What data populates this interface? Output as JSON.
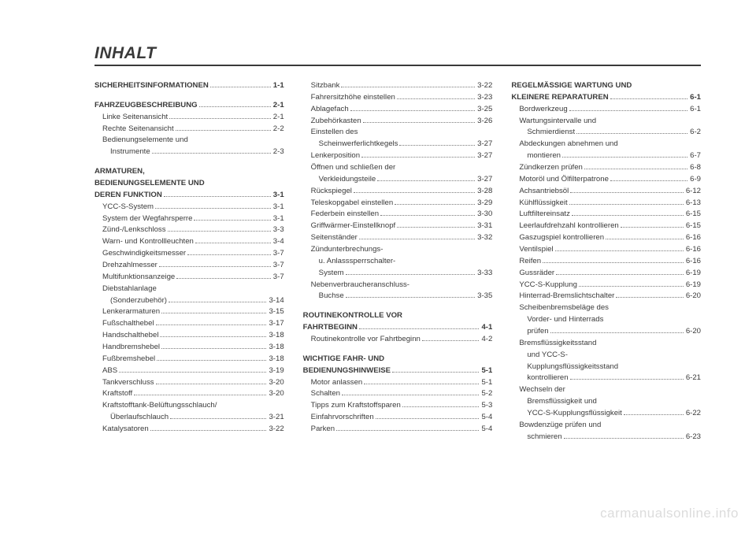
{
  "title": "INHALT",
  "watermark": "carmanualsonline.info",
  "col1": {
    "s1": {
      "head": "SICHERHEITSINFORMATIONEN",
      "pg": "1-1"
    },
    "s2": {
      "head": "FAHRZEUGBESCHREIBUNG",
      "pg": "2-1",
      "e1": {
        "t": "Linke Seitenansicht",
        "pg": "2-1"
      },
      "e2": {
        "t": "Rechte Seitenansicht",
        "pg": "2-2"
      },
      "e3": {
        "t": "Bedienungselemente und"
      },
      "e4": {
        "t": "Instrumente",
        "pg": "2-3"
      }
    },
    "s3": {
      "l1": "ARMATUREN,",
      "l2": "BEDIENUNGSELEMENTE UND",
      "l3": "DEREN FUNKTION",
      "pg": "3-1",
      "e1": {
        "t": "YCC-S-System",
        "pg": "3-1"
      },
      "e2": {
        "t": "System der Wegfahrsperre",
        "pg": "3-1"
      },
      "e3": {
        "t": "Zünd-/Lenkschloss",
        "pg": "3-3"
      },
      "e4": {
        "t": "Warn- und Kontrollleuchten",
        "pg": "3-4"
      },
      "e5": {
        "t": "Geschwindigkeitsmesser",
        "pg": "3-7"
      },
      "e6": {
        "t": "Drehzahlmesser",
        "pg": "3-7"
      },
      "e7": {
        "t": "Multifunktionsanzeige",
        "pg": "3-7"
      },
      "e8": {
        "t": "Diebstahlanlage"
      },
      "e9": {
        "t": "(Sonderzubehör)",
        "pg": "3-14"
      },
      "e10": {
        "t": "Lenkerarmaturen",
        "pg": "3-15"
      },
      "e11": {
        "t": "Fußschalthebel",
        "pg": "3-17"
      },
      "e12": {
        "t": "Handschalthebel",
        "pg": "3-18"
      },
      "e13": {
        "t": "Handbremshebel",
        "pg": "3-18"
      },
      "e14": {
        "t": "Fußbremshebel",
        "pg": "3-18"
      },
      "e15": {
        "t": "ABS",
        "pg": "3-19"
      },
      "e16": {
        "t": "Tankverschluss",
        "pg": "3-20"
      },
      "e17": {
        "t": "Kraftstoff",
        "pg": "3-20"
      },
      "e18": {
        "t": "Kraftstofftank-Belüftungsschlauch/"
      },
      "e19": {
        "t": "Überlaufschlauch",
        "pg": "3-21"
      },
      "e20": {
        "t": "Katalysatoren",
        "pg": "3-22"
      }
    }
  },
  "col2": {
    "top": {
      "e1": {
        "t": "Sitzbank",
        "pg": "3-22"
      },
      "e2": {
        "t": "Fahrersitzhöhe einstellen",
        "pg": "3-23"
      },
      "e3": {
        "t": "Ablagefach",
        "pg": "3-25"
      },
      "e4": {
        "t": "Zubehörkasten",
        "pg": "3-26"
      },
      "e5": {
        "t": "Einstellen des"
      },
      "e6": {
        "t": "Scheinwerferlichtkegels",
        "pg": "3-27"
      },
      "e7": {
        "t": "Lenkerposition",
        "pg": "3-27"
      },
      "e8": {
        "t": "Öffnen und schließen der"
      },
      "e9": {
        "t": "Verkleidungsteile",
        "pg": "3-27"
      },
      "e10": {
        "t": "Rückspiegel",
        "pg": "3-28"
      },
      "e11": {
        "t": "Teleskopgabel einstellen",
        "pg": "3-29"
      },
      "e12": {
        "t": "Federbein einstellen",
        "pg": "3-30"
      },
      "e13": {
        "t": "Griffwärmer-Einstellknopf",
        "pg": "3-31"
      },
      "e14": {
        "t": "Seitenständer",
        "pg": "3-32"
      },
      "e15": {
        "t": "Zündunterbrechungs-"
      },
      "e16": {
        "t": "u. Anlasssperrschalter-"
      },
      "e17": {
        "t": "System",
        "pg": "3-33"
      },
      "e18": {
        "t": "Nebenverbraucheranschluss-"
      },
      "e19": {
        "t": "Buchse",
        "pg": "3-35"
      }
    },
    "s4": {
      "l1": "ROUTINEKONTROLLE VOR",
      "l2": "FAHRTBEGINN",
      "pg": "4-1",
      "e1": {
        "t": "Routinekontrolle vor Fahrtbeginn",
        "pg": "4-2"
      }
    },
    "s5": {
      "l1": "WICHTIGE FAHR- UND",
      "l2": "BEDIENUNGSHINWEISE",
      "pg": "5-1",
      "e1": {
        "t": "Motor anlassen",
        "pg": "5-1"
      },
      "e2": {
        "t": "Schalten",
        "pg": "5-2"
      },
      "e3": {
        "t": "Tipps zum Kraftstoffsparen",
        "pg": "5-3"
      },
      "e4": {
        "t": "Einfahrvorschriften",
        "pg": "5-4"
      },
      "e5": {
        "t": "Parken",
        "pg": "5-4"
      }
    }
  },
  "col3": {
    "s6": {
      "l1": "REGELMÄSSIGE WARTUNG UND",
      "l2": "KLEINERE REPARATUREN",
      "pg": "6-1",
      "e1": {
        "t": "Bordwerkzeug",
        "pg": "6-1"
      },
      "e2": {
        "t": "Wartungsintervalle und"
      },
      "e3": {
        "t": "Schmierdienst",
        "pg": "6-2"
      },
      "e4": {
        "t": "Abdeckungen abnehmen und"
      },
      "e5": {
        "t": "montieren",
        "pg": "6-7"
      },
      "e6": {
        "t": "Zündkerzen prüfen",
        "pg": "6-8"
      },
      "e7": {
        "t": "Motoröl und Ölfilterpatrone",
        "pg": "6-9"
      },
      "e8": {
        "t": "Achsantriebsöl",
        "pg": "6-12"
      },
      "e9": {
        "t": "Kühlflüssigkeit",
        "pg": "6-13"
      },
      "e10": {
        "t": "Luftfiltereinsatz",
        "pg": "6-15"
      },
      "e11": {
        "t": "Leerlaufdrehzahl kontrollieren",
        "pg": "6-15"
      },
      "e12": {
        "t": "Gaszugspiel kontrollieren",
        "pg": "6-16"
      },
      "e13": {
        "t": "Ventilspiel",
        "pg": "6-16"
      },
      "e14": {
        "t": "Reifen",
        "pg": "6-16"
      },
      "e15": {
        "t": "Gussräder",
        "pg": "6-19"
      },
      "e16": {
        "t": "YCC-S-Kupplung",
        "pg": "6-19"
      },
      "e17": {
        "t": "Hinterrad-Bremslichtschalter",
        "pg": "6-20"
      },
      "e18": {
        "t": "Scheibenbremsbeläge des"
      },
      "e19": {
        "t": "Vorder- und Hinterrads"
      },
      "e20": {
        "t": "prüfen",
        "pg": "6-20"
      },
      "e21": {
        "t": "Bremsflüssigkeitsstand"
      },
      "e22": {
        "t": "und YCC-S-"
      },
      "e23": {
        "t": "Kupplungsflüssigkeitsstand"
      },
      "e24": {
        "t": "kontrollieren",
        "pg": "6-21"
      },
      "e25": {
        "t": "Wechseln der"
      },
      "e26": {
        "t": "Bremsflüssigkeit und"
      },
      "e27": {
        "t": "YCC-S-Kupplungsflüssigkeit",
        "pg": "6-22"
      },
      "e28": {
        "t": "Bowdenzüge prüfen und"
      },
      "e29": {
        "t": "schmieren",
        "pg": "6-23"
      }
    }
  }
}
